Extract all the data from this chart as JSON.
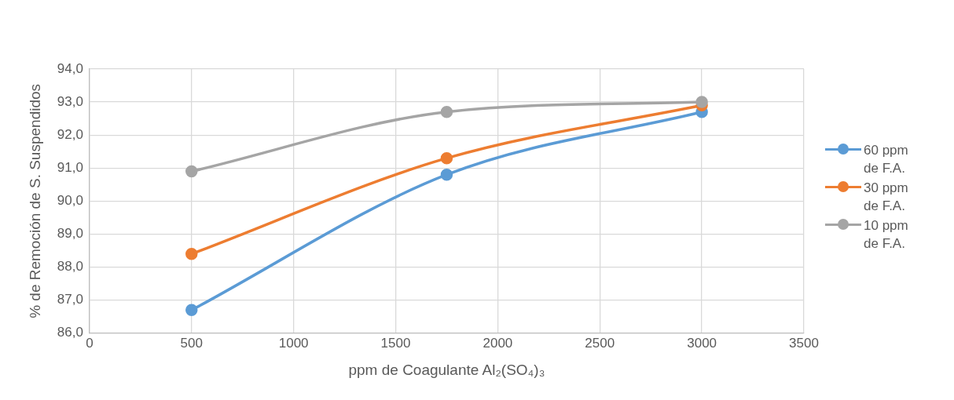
{
  "chart_data": {
    "type": "line",
    "xlabel": "ppm de Coagulante Al₂(SO₄)₃",
    "ylabel": "% de Remoción de S. Suspendidos",
    "x": [
      500,
      1750,
      3000
    ],
    "series": [
      {
        "name": "60 ppm de F.A.",
        "color": "#5b9bd5",
        "values": [
          86.7,
          90.8,
          92.7
        ]
      },
      {
        "name": "30 ppm de F.A.",
        "color": "#ed7d31",
        "values": [
          88.4,
          91.3,
          92.9
        ]
      },
      {
        "name": "10 ppm de F.A.",
        "color": "#a5a5a5",
        "values": [
          90.9,
          92.7,
          93.0
        ]
      }
    ],
    "xlim": [
      0,
      3500
    ],
    "xticks": [
      0,
      500,
      1000,
      1500,
      2000,
      2500,
      3000,
      3500
    ],
    "ylim": [
      86,
      94
    ],
    "yticks": [
      {
        "value": 86,
        "label": "86,0"
      },
      {
        "value": 87,
        "label": "87,0"
      },
      {
        "value": 88,
        "label": "88,0"
      },
      {
        "value": 89,
        "label": "89,0"
      },
      {
        "value": 90,
        "label": "90,0"
      },
      {
        "value": 91,
        "label": "91,0"
      },
      {
        "value": 92,
        "label": "92,0"
      },
      {
        "value": 93,
        "label": "93,0"
      },
      {
        "value": 94,
        "label": "94,0"
      }
    ],
    "grid": true,
    "legend": "right",
    "marker": "circle",
    "line_style": "solid"
  }
}
